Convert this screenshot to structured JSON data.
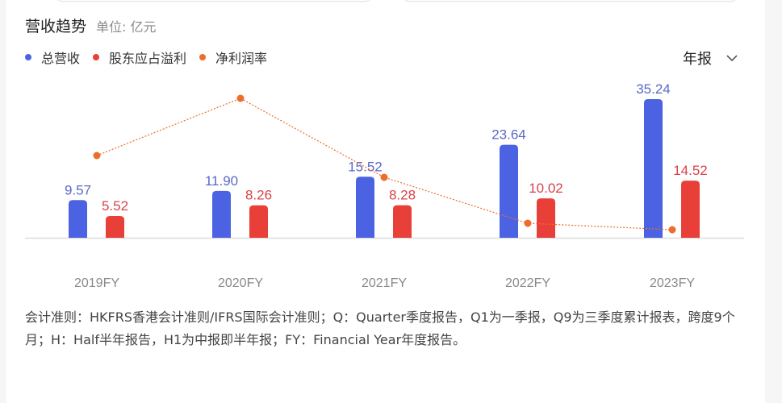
{
  "header": {
    "title": "营收趋势",
    "unit": "单位: 亿元"
  },
  "legend": [
    {
      "label": "总营收",
      "color": "#4b63e3"
    },
    {
      "label": "股东应占溢利",
      "color": "#e84038"
    },
    {
      "label": "净利润率",
      "color": "#ec6e2a"
    }
  ],
  "period_select": {
    "selected": "年报",
    "icon": "chevron-down-icon"
  },
  "colors": {
    "revenue": "#4b63e3",
    "profit": "#e84038",
    "margin": "#ec6e2a",
    "revenue_label": "#5a68c8",
    "profit_label": "#d8434a",
    "axis": "#dcdcdc",
    "xlabel": "#8a8a8e"
  },
  "chart_data": {
    "type": "bar",
    "title": "营收趋势",
    "subtitle": "单位: 亿元",
    "categories": [
      "2019FY",
      "2020FY",
      "2021FY",
      "2022FY",
      "2023FY"
    ],
    "series": [
      {
        "name": "总营收",
        "type": "bar",
        "values": [
          9.57,
          11.9,
          15.52,
          23.64,
          35.24
        ],
        "labels": [
          "9.57",
          "11.90",
          "15.52",
          "23.64",
          "35.24"
        ]
      },
      {
        "name": "股东应占溢利",
        "type": "bar",
        "values": [
          5.52,
          8.26,
          8.28,
          10.02,
          14.52
        ],
        "labels": [
          "5.52",
          "8.26",
          "8.28",
          "10.02",
          "14.52"
        ]
      },
      {
        "name": "净利润率",
        "type": "line",
        "values": [
          57.7,
          69.4,
          53.4,
          42.4,
          41.2
        ],
        "note": "estimated from positions; no labels shown (approx. profit/revenue %)"
      }
    ],
    "xlabel": "",
    "ylabel": "",
    "legend_position": "top-left",
    "grid": false
  },
  "footnote": "会计准则：HKFRS香港会计准则/IFRS国际会计准则；Q：Quarter季度报告，Q1为一季报，Q9为三季度累计报表，跨度9个月；H：Half半年报告，H1为中报即半年报；FY：Financial Year年度报告。"
}
